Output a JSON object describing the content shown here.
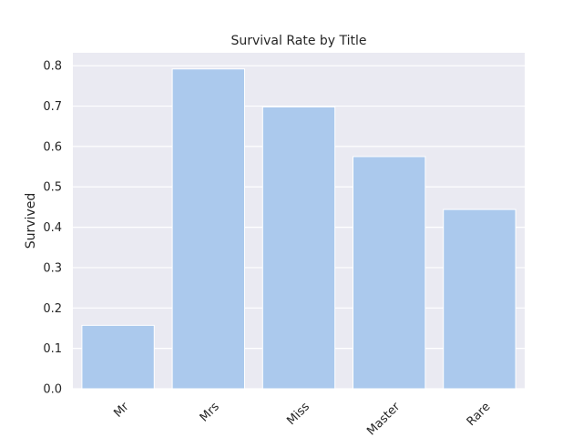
{
  "chart_data": {
    "type": "bar",
    "title": "Survival Rate by Title",
    "xlabel": "",
    "ylabel": "Survived",
    "categories": [
      "Mr",
      "Mrs",
      "Miss",
      "Master",
      "Rare"
    ],
    "values": [
      0.157,
      0.792,
      0.698,
      0.575,
      0.444
    ],
    "ylim": [
      0,
      0.832
    ],
    "yticks": [
      "0.0",
      "0.1",
      "0.2",
      "0.3",
      "0.4",
      "0.5",
      "0.6",
      "0.7",
      "0.8"
    ],
    "ytick_values": [
      0,
      0.1,
      0.2,
      0.3,
      0.4,
      0.5,
      0.6,
      0.7,
      0.8
    ],
    "grid": true,
    "x_tick_rotation": 45,
    "bar_color": "#abc9ed",
    "background_color": "#eaeaf2",
    "grid_color": "#ffffff"
  }
}
